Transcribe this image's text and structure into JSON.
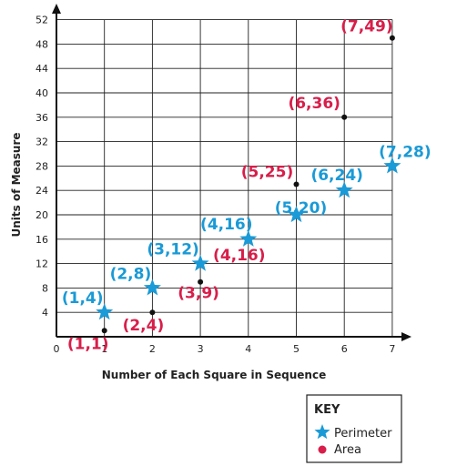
{
  "chart_data": {
    "type": "scatter",
    "xlabel": "Number of Each Square in Sequence",
    "ylabel": "Units of Measure",
    "xlim": [
      0,
      7
    ],
    "ylim": [
      0,
      52
    ],
    "x_ticks": [
      "0",
      "1",
      "2",
      "3",
      "4",
      "5",
      "6",
      "7"
    ],
    "y_ticks": [
      "4",
      "8",
      "12",
      "16",
      "20",
      "24",
      "28",
      "32",
      "36",
      "40",
      "44",
      "48",
      "52"
    ],
    "grid": true,
    "series": [
      {
        "name": "Perimeter",
        "marker": "star",
        "color": "#1a9ad6",
        "points": [
          {
            "x": 1,
            "y": 4,
            "label": "(1,4)"
          },
          {
            "x": 2,
            "y": 8,
            "label": "(2,8)"
          },
          {
            "x": 3,
            "y": 12,
            "label": "(3,12)"
          },
          {
            "x": 4,
            "y": 16,
            "label": "(4,16)"
          },
          {
            "x": 5,
            "y": 20,
            "label": "(5,20)"
          },
          {
            "x": 6,
            "y": 24,
            "label": "(6,24)"
          },
          {
            "x": 7,
            "y": 28,
            "label": "(7,28)"
          }
        ]
      },
      {
        "name": "Area",
        "marker": "dot",
        "color": "#d81e4a",
        "points": [
          {
            "x": 1,
            "y": 1,
            "label": "(1,1)"
          },
          {
            "x": 2,
            "y": 4,
            "label": "(2,4)"
          },
          {
            "x": 3,
            "y": 9,
            "label": "(3,9)"
          },
          {
            "x": 4,
            "y": 16,
            "label": "(4,16)"
          },
          {
            "x": 5,
            "y": 25,
            "label": "(5,25)"
          },
          {
            "x": 6,
            "y": 36,
            "label": "(6,36)"
          },
          {
            "x": 7,
            "y": 49,
            "label": "(7,49)"
          }
        ]
      }
    ],
    "legend": {
      "title": "KEY",
      "position": "bottom-right",
      "items": [
        "Perimeter",
        "Area"
      ]
    }
  }
}
